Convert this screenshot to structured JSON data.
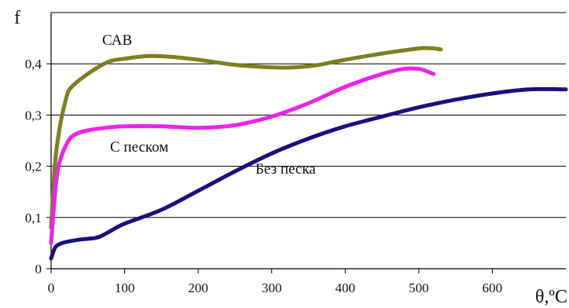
{
  "chart_data": {
    "type": "line",
    "title": "",
    "xlabel": "θ,ºC",
    "ylabel": "f",
    "xlim": [
      0,
      700
    ],
    "ylim": [
      0,
      0.5
    ],
    "x_ticks": [
      0,
      100,
      200,
      300,
      400,
      500,
      600
    ],
    "x_tick_labels": [
      "0",
      "100",
      "200",
      "300",
      "400",
      "500",
      "600"
    ],
    "y_ticks": [
      0,
      0.1,
      0.2,
      0.3,
      0.4
    ],
    "y_tick_labels": [
      "0",
      "0,1",
      "0,2",
      "0,3",
      "0,4"
    ],
    "grid": "horizontal",
    "legend": "none (labels placed directly on the plot)",
    "series": [
      {
        "name": "САВ",
        "color": "#7f7f20",
        "x": [
          0,
          5,
          10,
          15,
          20,
          25,
          40,
          60,
          80,
          100,
          130,
          160,
          200,
          250,
          300,
          330,
          360,
          400,
          450,
          500,
          520,
          530
        ],
        "y": [
          0.08,
          0.2,
          0.26,
          0.3,
          0.33,
          0.35,
          0.37,
          0.39,
          0.405,
          0.41,
          0.415,
          0.414,
          0.408,
          0.398,
          0.393,
          0.393,
          0.397,
          0.408,
          0.42,
          0.43,
          0.43,
          0.428
        ]
      },
      {
        "name": "С песком",
        "color": "#ee22ee",
        "x": [
          0,
          5,
          10,
          20,
          30,
          50,
          80,
          100,
          150,
          200,
          250,
          300,
          350,
          400,
          450,
          480,
          500,
          510,
          520
        ],
        "y": [
          0.05,
          0.14,
          0.2,
          0.24,
          0.26,
          0.27,
          0.276,
          0.278,
          0.278,
          0.275,
          0.28,
          0.297,
          0.323,
          0.355,
          0.38,
          0.39,
          0.39,
          0.386,
          0.38
        ]
      },
      {
        "name": "Без песка",
        "color": "#1a1080",
        "x": [
          0,
          5,
          10,
          20,
          40,
          60,
          70,
          80,
          100,
          150,
          200,
          250,
          300,
          350,
          400,
          450,
          500,
          550,
          600,
          650,
          700
        ],
        "y": [
          0.02,
          0.04,
          0.047,
          0.052,
          0.057,
          0.06,
          0.065,
          0.073,
          0.088,
          0.115,
          0.152,
          0.19,
          0.225,
          0.254,
          0.278,
          0.297,
          0.315,
          0.33,
          0.342,
          0.35,
          0.35
        ]
      }
    ],
    "annotations": [
      {
        "text": "САВ",
        "series": "САВ"
      },
      {
        "text": "С песком",
        "series": "С песком"
      },
      {
        "text": "Без песка",
        "series": "Без песка"
      }
    ]
  }
}
